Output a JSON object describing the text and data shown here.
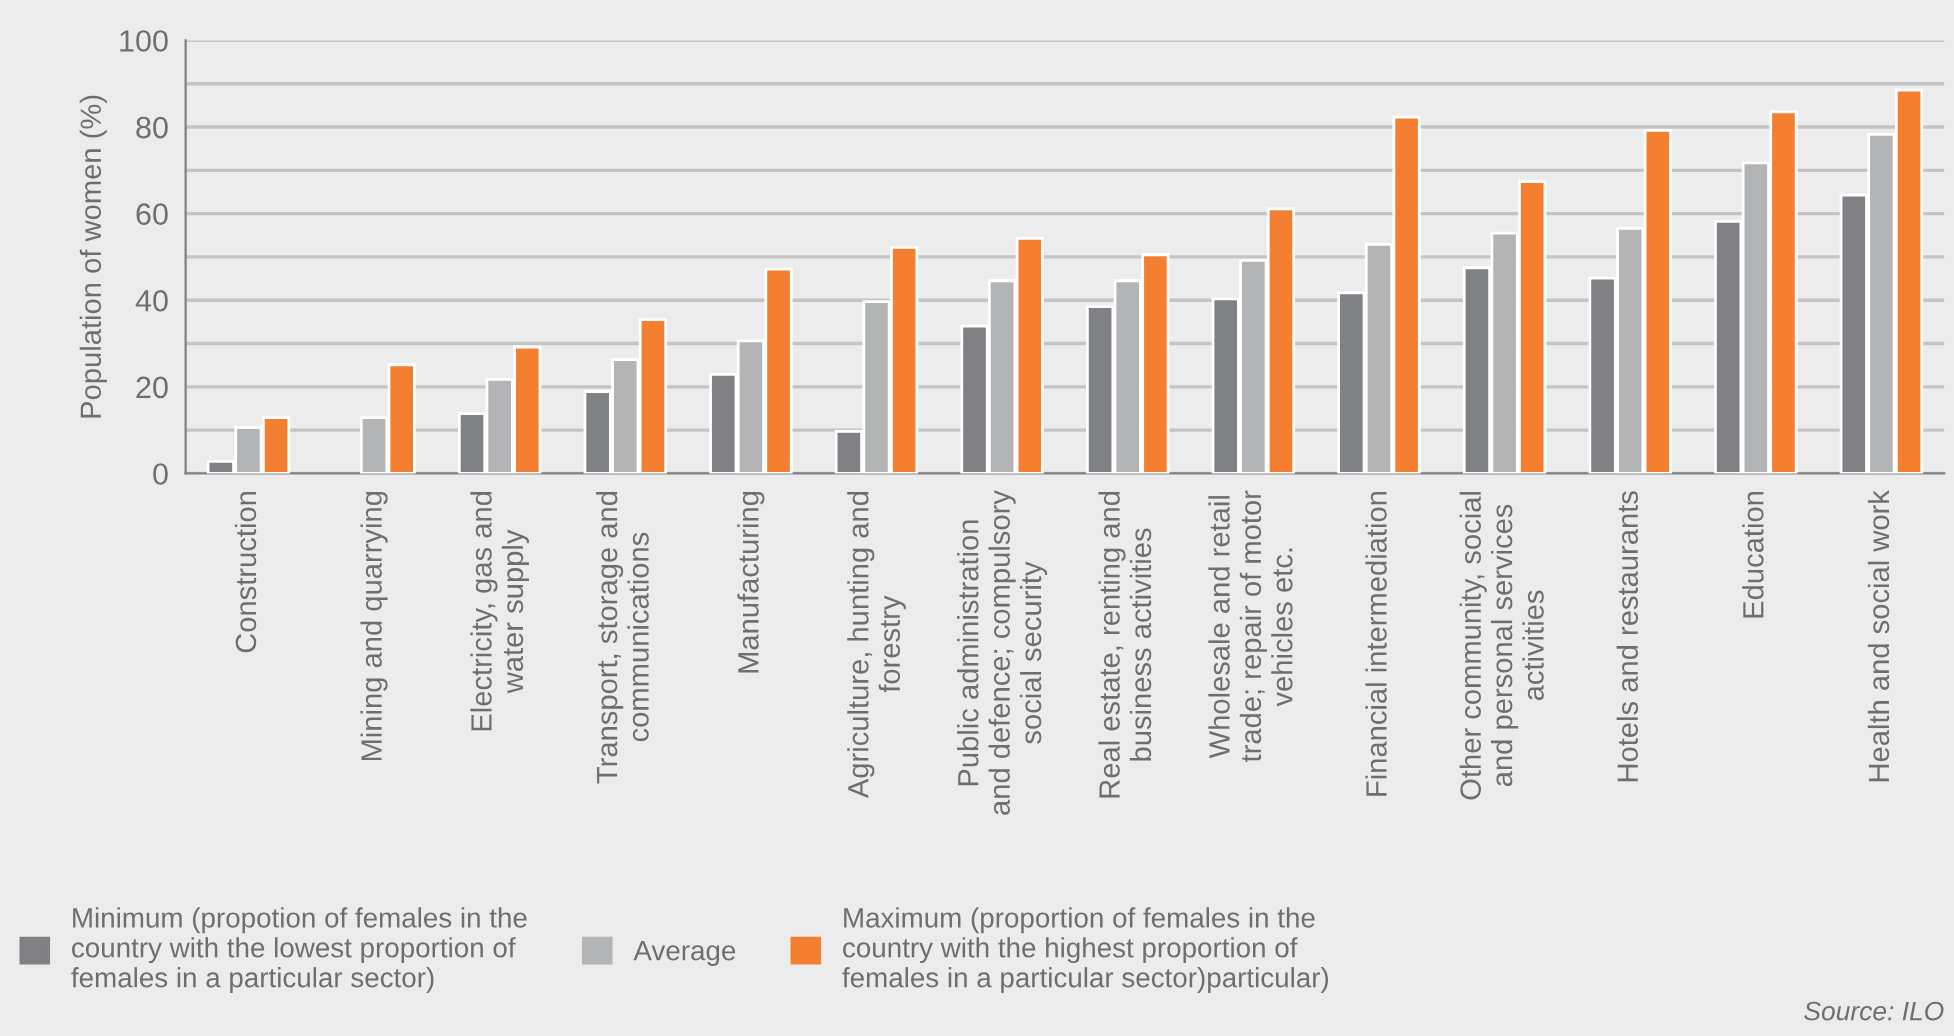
{
  "chart_data": {
    "type": "bar",
    "ylabel": "Population of women (%)",
    "categories": [
      "Construction",
      "Mining and quarrying",
      "Electricity, gas and water supply",
      "Transport, storage and communications",
      "Manufacturing",
      "Agriculture, hunting and forestry",
      "Public administration and defence; compulsory social security",
      "Real estate, renting and business activities",
      "Wholesale and retail trade; repair of motor vehicles etc.",
      "Financial intermediation",
      "Other community, social and personal services activities",
      "Hotels and restaurants",
      "Education",
      "Health and social work"
    ],
    "series": [
      {
        "name": "Minimum (propotion of females in the country with the lowest proportion of females in a particular sector)",
        "color": "#808184",
        "values": [
          2.8,
          null,
          13.8,
          18.9,
          22.9,
          9.7,
          34,
          38.5,
          40.3,
          41.7,
          47.5,
          45.1,
          58.2,
          64.3
        ]
      },
      {
        "name": "Average",
        "color": "#b3b4b6",
        "values": [
          10.6,
          12.9,
          21.7,
          26.3,
          30.6,
          39.7,
          44.5,
          44.5,
          49.2,
          52.9,
          55.5,
          56.6,
          71.7,
          78.3
        ]
      },
      {
        "name": "Maximum (proportion of females in the country with the highest proportion of females in a particular sector)particular)",
        "color": "#f47f30",
        "values": [
          12.9,
          25.1,
          29.2,
          35.5,
          47.2,
          52.2,
          54.3,
          50.5,
          61.1,
          82.3,
          67.4,
          79.2,
          83.5,
          88.5
        ]
      }
    ],
    "ylim": [
      0,
      100
    ],
    "yticks": [
      0,
      {
        "value": 10,
        "label": null
      },
      20,
      {
        "value": 30,
        "label": null
      },
      40,
      {
        "value": 50,
        "label": null
      },
      60,
      {
        "value": 70,
        "label": null
      },
      80,
      {
        "value": 90,
        "label": null
      },
      100
    ],
    "grid": "y",
    "legend": "bottom",
    "annotations": [
      "Source: ILO"
    ]
  }
}
